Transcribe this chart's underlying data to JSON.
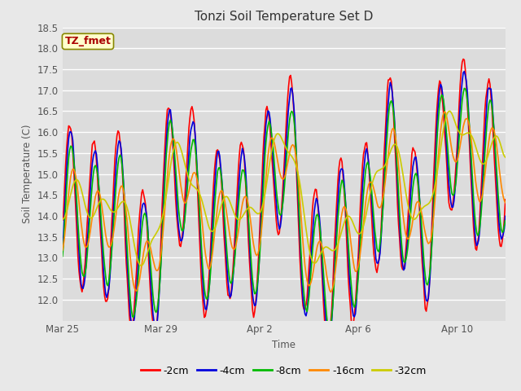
{
  "title": "Tonzi Soil Temperature Set D",
  "xlabel": "Time",
  "ylabel": "Soil Temperature (C)",
  "ylim": [
    11.5,
    18.5
  ],
  "yticks": [
    12.0,
    12.5,
    13.0,
    13.5,
    14.0,
    14.5,
    15.0,
    15.5,
    16.0,
    16.5,
    17.0,
    17.5,
    18.0,
    18.5
  ],
  "xtick_labels": [
    "Mar 25",
    "Mar 29",
    "Apr 2",
    "Apr 6",
    "Apr 10"
  ],
  "xtick_positions": [
    0,
    96,
    192,
    288,
    384
  ],
  "annotation_text": "TZ_fmet",
  "annotation_color": "#aa0000",
  "annotation_bg": "#ffffcc",
  "annotation_border": "#888800",
  "series_colors": [
    "#ff0000",
    "#0000dd",
    "#00bb00",
    "#ff8800",
    "#cccc00"
  ],
  "series_labels": [
    "-2cm",
    "-4cm",
    "-8cm",
    "-16cm",
    "-32cm"
  ],
  "series_lw": [
    1.2,
    1.2,
    1.2,
    1.2,
    1.2
  ],
  "fig_bg": "#e8e8e8",
  "plot_bg": "#dcdcdc",
  "grid_color": "#ffffff",
  "n_points": 432
}
